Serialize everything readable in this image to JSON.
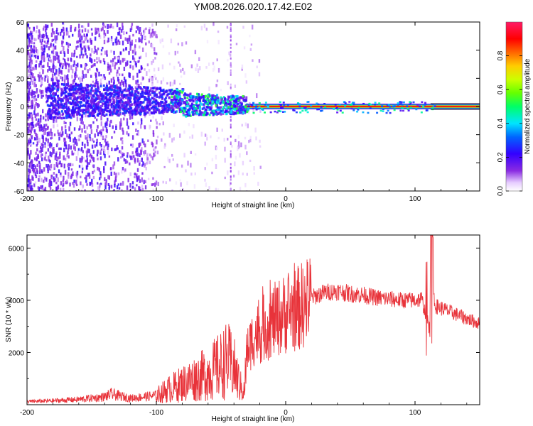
{
  "title": "YM08.2026.020.17.42.E02",
  "chart_data": [
    {
      "type": "heatmap",
      "xlabel": "Height of straight line (km)",
      "ylabel": "Frequency (Hz)",
      "xlim": [
        -200,
        150
      ],
      "ylim": [
        -60,
        60
      ],
      "x_ticks": [
        "-200",
        "-100",
        "0",
        "100"
      ],
      "x_tick_values": [
        -200,
        -100,
        0,
        100
      ],
      "y_ticks": [
        "-60",
        "-40",
        "-20",
        "0",
        "20",
        "40",
        "60"
      ],
      "y_tick_values": [
        -60,
        -40,
        -20,
        0,
        20,
        40,
        60
      ],
      "colorbar": {
        "label": "Normalized spectral amplitude",
        "range": [
          0,
          1
        ],
        "ticks": [
          "0.0",
          "0.2",
          "0.4",
          "0.6",
          "0.8"
        ],
        "tick_values": [
          0.0,
          0.2,
          0.4,
          0.6,
          0.8
        ],
        "colormap": "rainbow (white-violet-blue-cyan-green-yellow-red-magenta)"
      },
      "features": {
        "noise_region_km": [
          -200,
          -100
        ],
        "main_band_center_hz": 0,
        "main_band_start_km": -30,
        "band_end_km": 150
      }
    },
    {
      "type": "line",
      "xlabel": "Height of straight line (km)",
      "ylabel": "SNR (10 * v/v)",
      "xlim": [
        -200,
        150
      ],
      "ylim": [
        0,
        6500
      ],
      "x_ticks": [
        "-200",
        "-100",
        "0",
        "100"
      ],
      "x_tick_values": [
        -200,
        -100,
        0,
        100
      ],
      "y_ticks": [
        "2000",
        "4000",
        "6000"
      ],
      "y_tick_values": [
        2000,
        4000,
        6000
      ],
      "color": "#e8333a",
      "series": [
        {
          "name": "SNR",
          "x": [
            -200,
            -180,
            -160,
            -140,
            -135,
            -120,
            -100,
            -90,
            -80,
            -70,
            -60,
            -50,
            -45,
            -40,
            -35,
            -32,
            -30,
            -25,
            -20,
            -10,
            0,
            10,
            20,
            30,
            40,
            50,
            60,
            70,
            80,
            90,
            100,
            105,
            110,
            112,
            113,
            115,
            120,
            130,
            140,
            150
          ],
          "y": [
            120,
            150,
            200,
            300,
            400,
            250,
            350,
            600,
            800,
            1000,
            1200,
            1500,
            1700,
            1400,
            700,
            500,
            2000,
            2600,
            2800,
            3200,
            3500,
            3700,
            4100,
            4300,
            4350,
            4250,
            4200,
            4100,
            4050,
            4000,
            4000,
            4050,
            3200,
            2600,
            6300,
            3800,
            3700,
            3500,
            3300,
            3100
          ]
        }
      ]
    }
  ]
}
